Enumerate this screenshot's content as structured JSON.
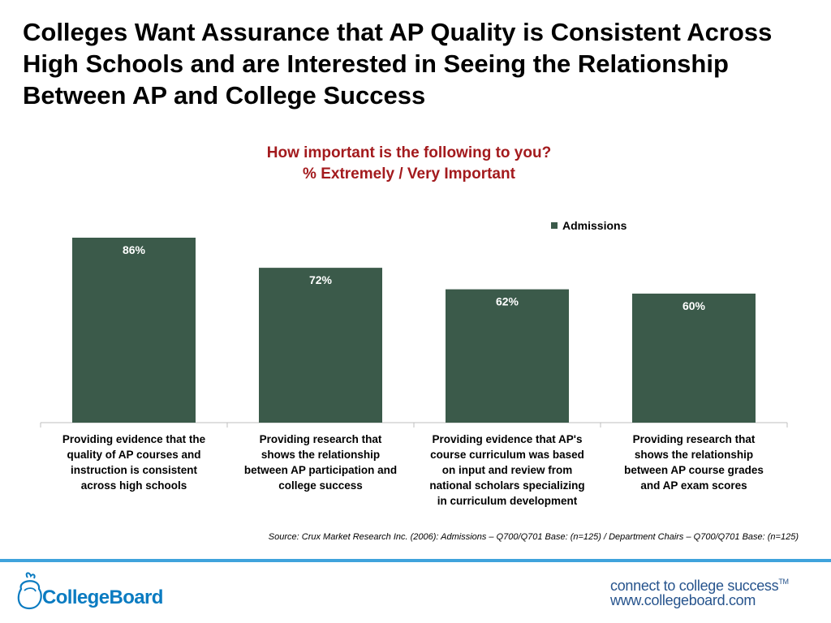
{
  "slide": {
    "title": "Colleges Want Assurance that AP Quality is Consistent Across High Schools and are Interested in Seeing the Relationship Between AP and College Success",
    "source": "Source: Crux Market Research Inc. (2006): Admissions – Q700/Q701 Base: (n=125) / Department Chairs – Q700/Q701 Base: (n=125)"
  },
  "chart_data": {
    "type": "bar",
    "title": "How important is the following to you?",
    "subtitle": "% Extremely / Very Important",
    "categories": [
      "Providing evidence that the quality of AP courses and instruction is consistent across high schools",
      "Providing research that shows the relationship between AP participation and college success",
      "Providing evidence that AP's course curriculum was based on input and review from national scholars specializing in curriculum development",
      "Providing research that shows the relationship between AP course grades and AP exam scores"
    ],
    "category_lines": [
      [
        "Providing evidence that the",
        "quality of AP courses and",
        "instruction is consistent",
        "across high schools"
      ],
      [
        "Providing research that",
        "shows the relationship",
        "between AP participation and",
        "college success"
      ],
      [
        "Providing evidence that AP's",
        "course curriculum was based",
        "on input and review from",
        "national scholars specializing",
        "in curriculum development"
      ],
      [
        "Providing research that",
        "shows the relationship",
        "between AP course grades",
        "and AP exam scores"
      ]
    ],
    "series": [
      {
        "name": "Admissions",
        "values": [
          86,
          72,
          62,
          60
        ],
        "labels": [
          "86%",
          "72%",
          "62%",
          "60%"
        ],
        "color": "#3b5a4a"
      }
    ],
    "ylim": [
      0,
      95
    ],
    "grid": false,
    "legend": "top-right",
    "xlabel": "",
    "ylabel": ""
  },
  "footer": {
    "logo_text": "CollegeBoard",
    "tagline": "connect to college success",
    "trademark": "TM",
    "website": "www.collegeboard.com",
    "accent_color": "#3fa3dc"
  }
}
